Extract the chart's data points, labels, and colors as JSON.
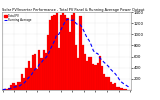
{
  "title": "Solar PV/Inverter Performance - Total PV Panel & Running Average Power Output",
  "background_color": "#ffffff",
  "grid_color": "#c8c8c8",
  "bar_color": "#ff0000",
  "bar_edge_color": "#dd0000",
  "avg_line_color": "#0000ff",
  "ylim": [
    0,
    1400
  ],
  "yticks": [
    200,
    400,
    600,
    800,
    1000,
    1200,
    1400
  ],
  "legend_pv": "Total PV",
  "legend_avg": "Running Average",
  "bar_heights": [
    10,
    20,
    35,
    60,
    90,
    140,
    200,
    280,
    350,
    420,
    500,
    580,
    650,
    700,
    780,
    850,
    920,
    980,
    1050,
    1100,
    1150,
    1200,
    1250,
    1320,
    1350,
    1380,
    1300,
    1350,
    1380,
    1350,
    1320,
    1300,
    1350,
    1380,
    1300,
    1250,
    1320,
    1100,
    1050,
    980,
    920,
    880,
    830,
    780,
    720,
    660,
    580,
    500,
    420,
    350,
    280,
    220,
    170,
    120,
    80,
    50,
    30,
    15,
    8,
    3
  ]
}
